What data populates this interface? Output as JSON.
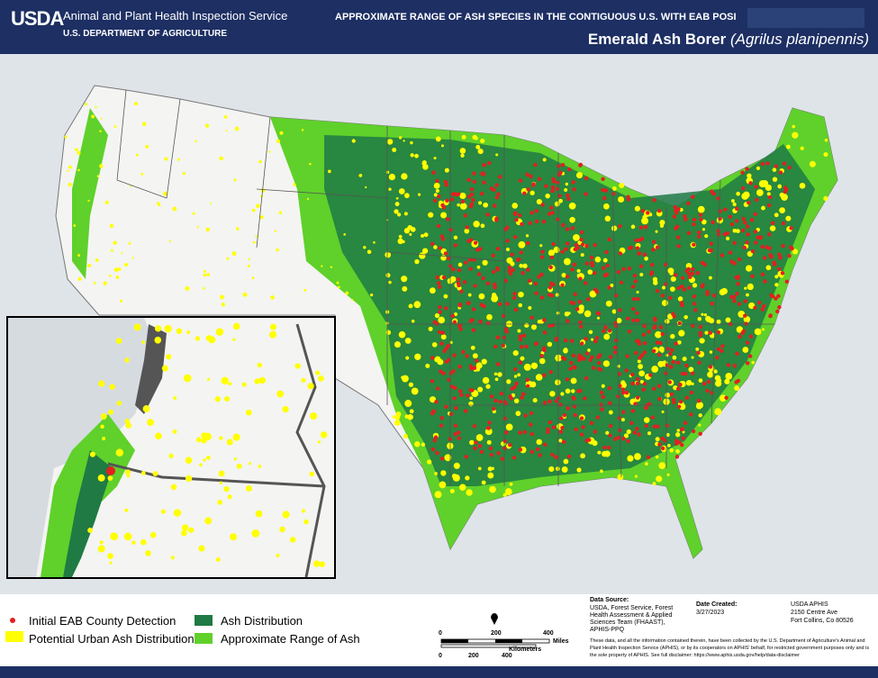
{
  "header": {
    "logo": "USDA",
    "agency": "Animal and Plant Health Inspection Service",
    "department": "U.S. DEPARTMENT OF AGRICULTURE",
    "title": "APPROXIMATE RANGE OF ASH SPECIES IN THE CONTIGUOUS U.S. WITH EAB POSI",
    "subtitle": "Emerald Ash Borer",
    "subtitle_species": "(Agrilus planipennis)"
  },
  "legend": {
    "items": [
      "Initial EAB County Detection",
      "Potential Urban Ash Distribution",
      "Ash Distribution",
      "Approximate Range of Ash"
    ]
  },
  "scale": {
    "miles_label": "Miles",
    "miles_ticks": [
      0,
      200,
      400
    ],
    "km_label": "Kilometers",
    "km_ticks": [
      0,
      200,
      400
    ]
  },
  "footer": {
    "source_title": "Data Source:",
    "source": "USDA, Forest Service, Forest Health Assessment & Applied Sciences Team (FHAAST), APHIS-PPQ",
    "date_title": "Date Created:",
    "date": "3/27/2023",
    "org": "USDA APHIS",
    "address1": "2150 Centre Ave",
    "address2": "Fort Collins, Co 80526",
    "disclaimer": "These data, and all the information contained therein, have been collected by the U.S. Department of Agriculture's Animal and Plant Health Inspection Service (APHIS), or by its cooperators on APHIS' behalf, for restricted government purposes only and is the sole property of APHIS. See full disclaimer: https://www.aphis.usda.gov/help/data-disclaimer"
  }
}
